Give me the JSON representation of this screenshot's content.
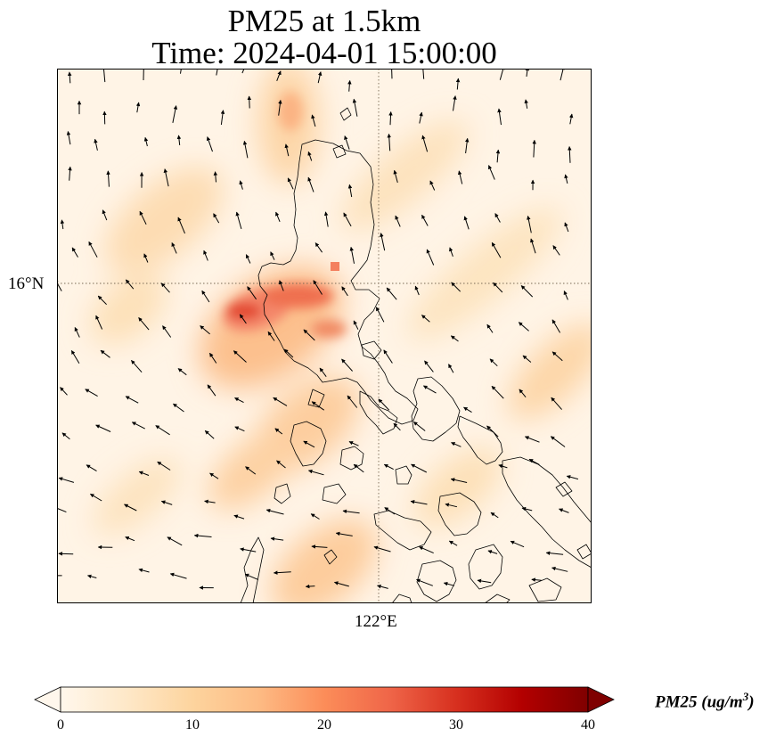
{
  "title": {
    "line1": "PM25 at 1.5km",
    "line2": "Time: 2024-04-01 15:00:00"
  },
  "map": {
    "lat_label": "16°N",
    "lon_label": "122°E",
    "coastline_color": "#000000",
    "gridline_color": "#7a6a55",
    "wind_arrow_color": "#000000",
    "colormap": "OrRd",
    "colormap_stops": [
      "#fff7ec",
      "#fee8c8",
      "#fdd49e",
      "#fdbb84",
      "#fc8d59",
      "#ef6548",
      "#d7301f",
      "#b30000",
      "#7f0000"
    ]
  },
  "colorbar": {
    "min": 0,
    "max": 40,
    "ticks": [
      "0",
      "10",
      "20",
      "30",
      "40"
    ],
    "extend": "both",
    "label_var": "PM25",
    "label_units_pre": "(ug/m",
    "label_units_sup": "3",
    "label_units_post": ")"
  }
}
